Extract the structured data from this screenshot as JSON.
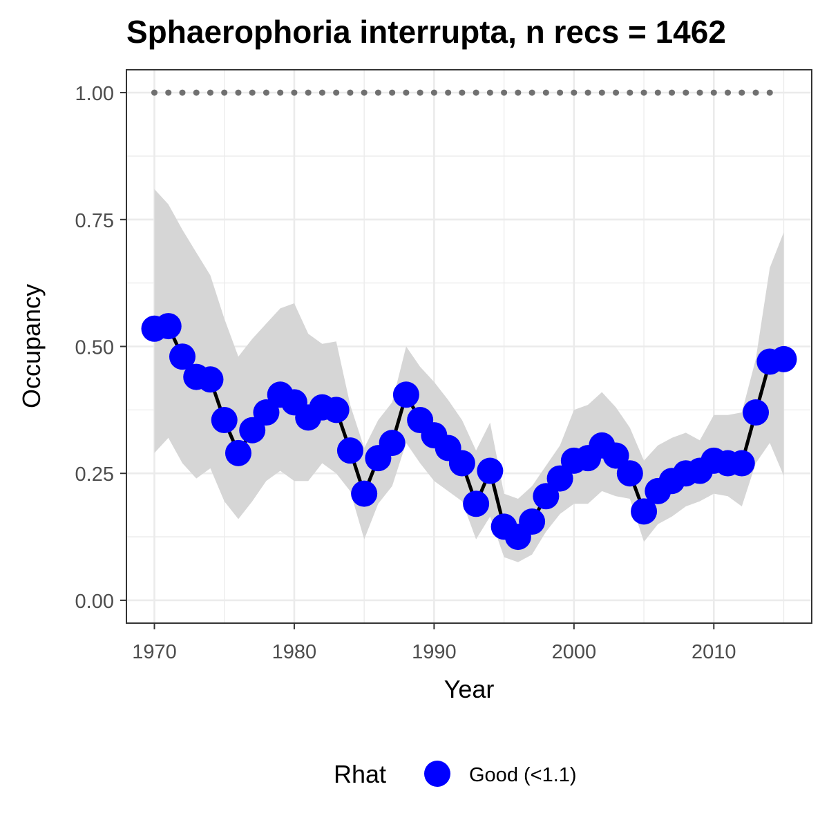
{
  "chart_data": {
    "type": "line",
    "title": "Sphaerophoria interrupta, n recs = 1462",
    "xlabel": "Year",
    "ylabel": "Occupancy",
    "xlim": [
      1968,
      2017
    ],
    "ylim": [
      -0.045,
      1.045
    ],
    "x_ticks": [
      1970,
      1980,
      1990,
      2000,
      2010
    ],
    "y_ticks": [
      0.0,
      0.25,
      0.5,
      0.75,
      1.0
    ],
    "y_tick_labels": [
      "0.00",
      "0.25",
      "0.50",
      "0.75",
      "1.00"
    ],
    "grid": true,
    "legend": {
      "position": "bottom",
      "title": "Rhat",
      "entries": [
        {
          "label": "Good (<1.1)",
          "color": "#0000ff"
        }
      ]
    },
    "colors": {
      "points": "#0000ff",
      "line": "#000000",
      "ribbon": "#d6d6d6",
      "reference": "#707070",
      "grid": "#ebebeb",
      "border": "#333333"
    },
    "reference_points": {
      "x_start": 1970,
      "x_end": 2014,
      "step": 1,
      "y": 1.0
    },
    "series": [
      {
        "x": [
          1970,
          1971,
          1972,
          1973,
          1974,
          1975,
          1976,
          1977,
          1978,
          1979,
          1980,
          1981,
          1982,
          1983,
          1984,
          1985,
          1986,
          1987,
          1988,
          1989,
          1990,
          1991,
          1992,
          1993,
          1994,
          1995,
          1996,
          1997,
          1998,
          1999,
          2000,
          2001,
          2002,
          2003,
          2004,
          2005,
          2006,
          2007,
          2008,
          2009,
          2010,
          2011,
          2012,
          2013,
          2014,
          2015
        ],
        "y": [
          0.535,
          0.54,
          0.48,
          0.44,
          0.435,
          0.355,
          0.29,
          0.335,
          0.37,
          0.405,
          0.39,
          0.36,
          0.38,
          0.375,
          0.295,
          0.21,
          0.28,
          0.31,
          0.405,
          0.355,
          0.325,
          0.3,
          0.27,
          0.19,
          0.255,
          0.145,
          0.125,
          0.155,
          0.205,
          0.24,
          0.275,
          0.28,
          0.305,
          0.285,
          0.25,
          0.175,
          0.215,
          0.235,
          0.25,
          0.255,
          0.275,
          0.27,
          0.27,
          0.37,
          0.47,
          0.475
        ],
        "lower": [
          0.29,
          0.32,
          0.27,
          0.24,
          0.26,
          0.195,
          0.16,
          0.195,
          0.235,
          0.255,
          0.235,
          0.235,
          0.27,
          0.25,
          0.215,
          0.12,
          0.19,
          0.225,
          0.31,
          0.27,
          0.235,
          0.215,
          0.195,
          0.12,
          0.165,
          0.085,
          0.075,
          0.09,
          0.135,
          0.17,
          0.19,
          0.19,
          0.215,
          0.205,
          0.2,
          0.115,
          0.15,
          0.165,
          0.185,
          0.195,
          0.21,
          0.205,
          0.185,
          0.27,
          0.31,
          0.245
        ],
        "upper": [
          0.81,
          0.78,
          0.73,
          0.685,
          0.64,
          0.555,
          0.48,
          0.515,
          0.545,
          0.575,
          0.585,
          0.525,
          0.505,
          0.51,
          0.385,
          0.3,
          0.355,
          0.39,
          0.5,
          0.46,
          0.43,
          0.395,
          0.355,
          0.295,
          0.35,
          0.21,
          0.2,
          0.225,
          0.265,
          0.305,
          0.375,
          0.385,
          0.41,
          0.38,
          0.34,
          0.275,
          0.305,
          0.32,
          0.33,
          0.315,
          0.365,
          0.365,
          0.37,
          0.475,
          0.655,
          0.725
        ]
      }
    ]
  }
}
